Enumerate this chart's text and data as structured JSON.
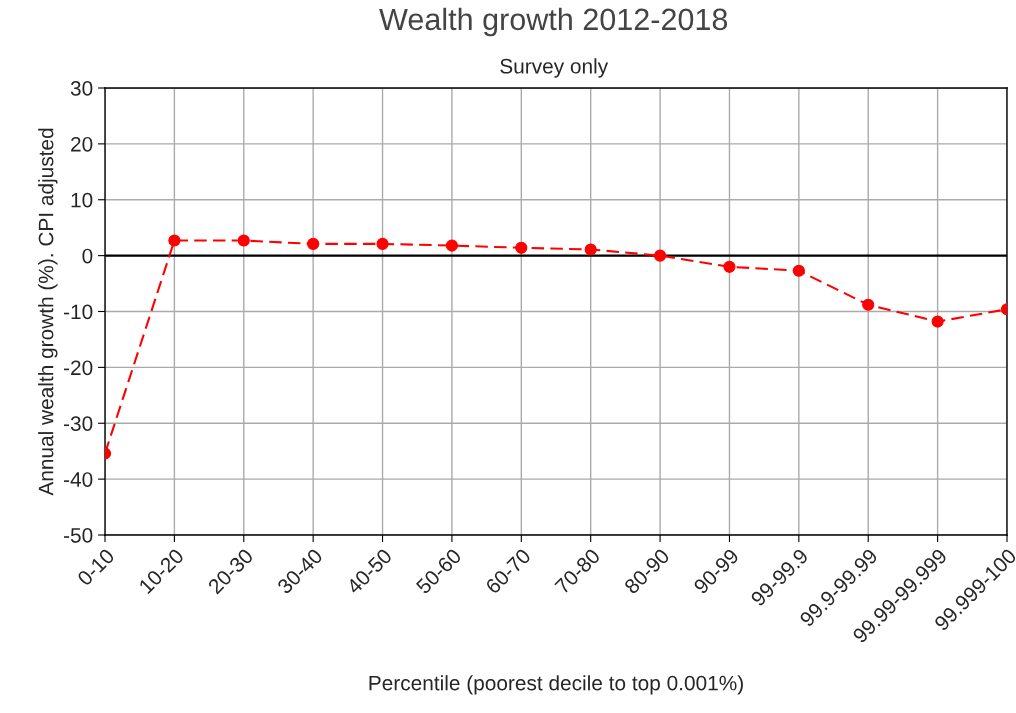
{
  "chart_data": {
    "type": "line",
    "title": "Wealth growth 2012-2018",
    "subtitle": "Survey only",
    "xlabel": "Percentile (poorest decile to top 0.001%)",
    "ylabel": "Annual wealth growth (%). CPI adjusted",
    "categories": [
      "0-10",
      "10-20",
      "20-30",
      "30-40",
      "40-50",
      "50-60",
      "60-70",
      "70-80",
      "80-90",
      "90-99",
      "99-99.9",
      "99.9-99.99",
      "99.99-99.999",
      "99.999-100"
    ],
    "series": [
      {
        "color": "#ff0000",
        "values": [
          -35.4,
          2.7,
          2.7,
          2.1,
          2.1,
          1.8,
          1.4,
          1.1,
          0.0,
          -2.0,
          -2.7,
          -8.8,
          -11.8,
          -9.6
        ]
      }
    ],
    "ylim": [
      -50,
      30
    ],
    "yticks": [
      -50,
      -40,
      -30,
      -20,
      -10,
      0,
      10,
      20,
      30
    ],
    "ref_lines": [
      {
        "axis": "y",
        "value": 0,
        "color": "#000000"
      }
    ],
    "grid": true,
    "marker": "circle",
    "line_style": "dashed"
  }
}
